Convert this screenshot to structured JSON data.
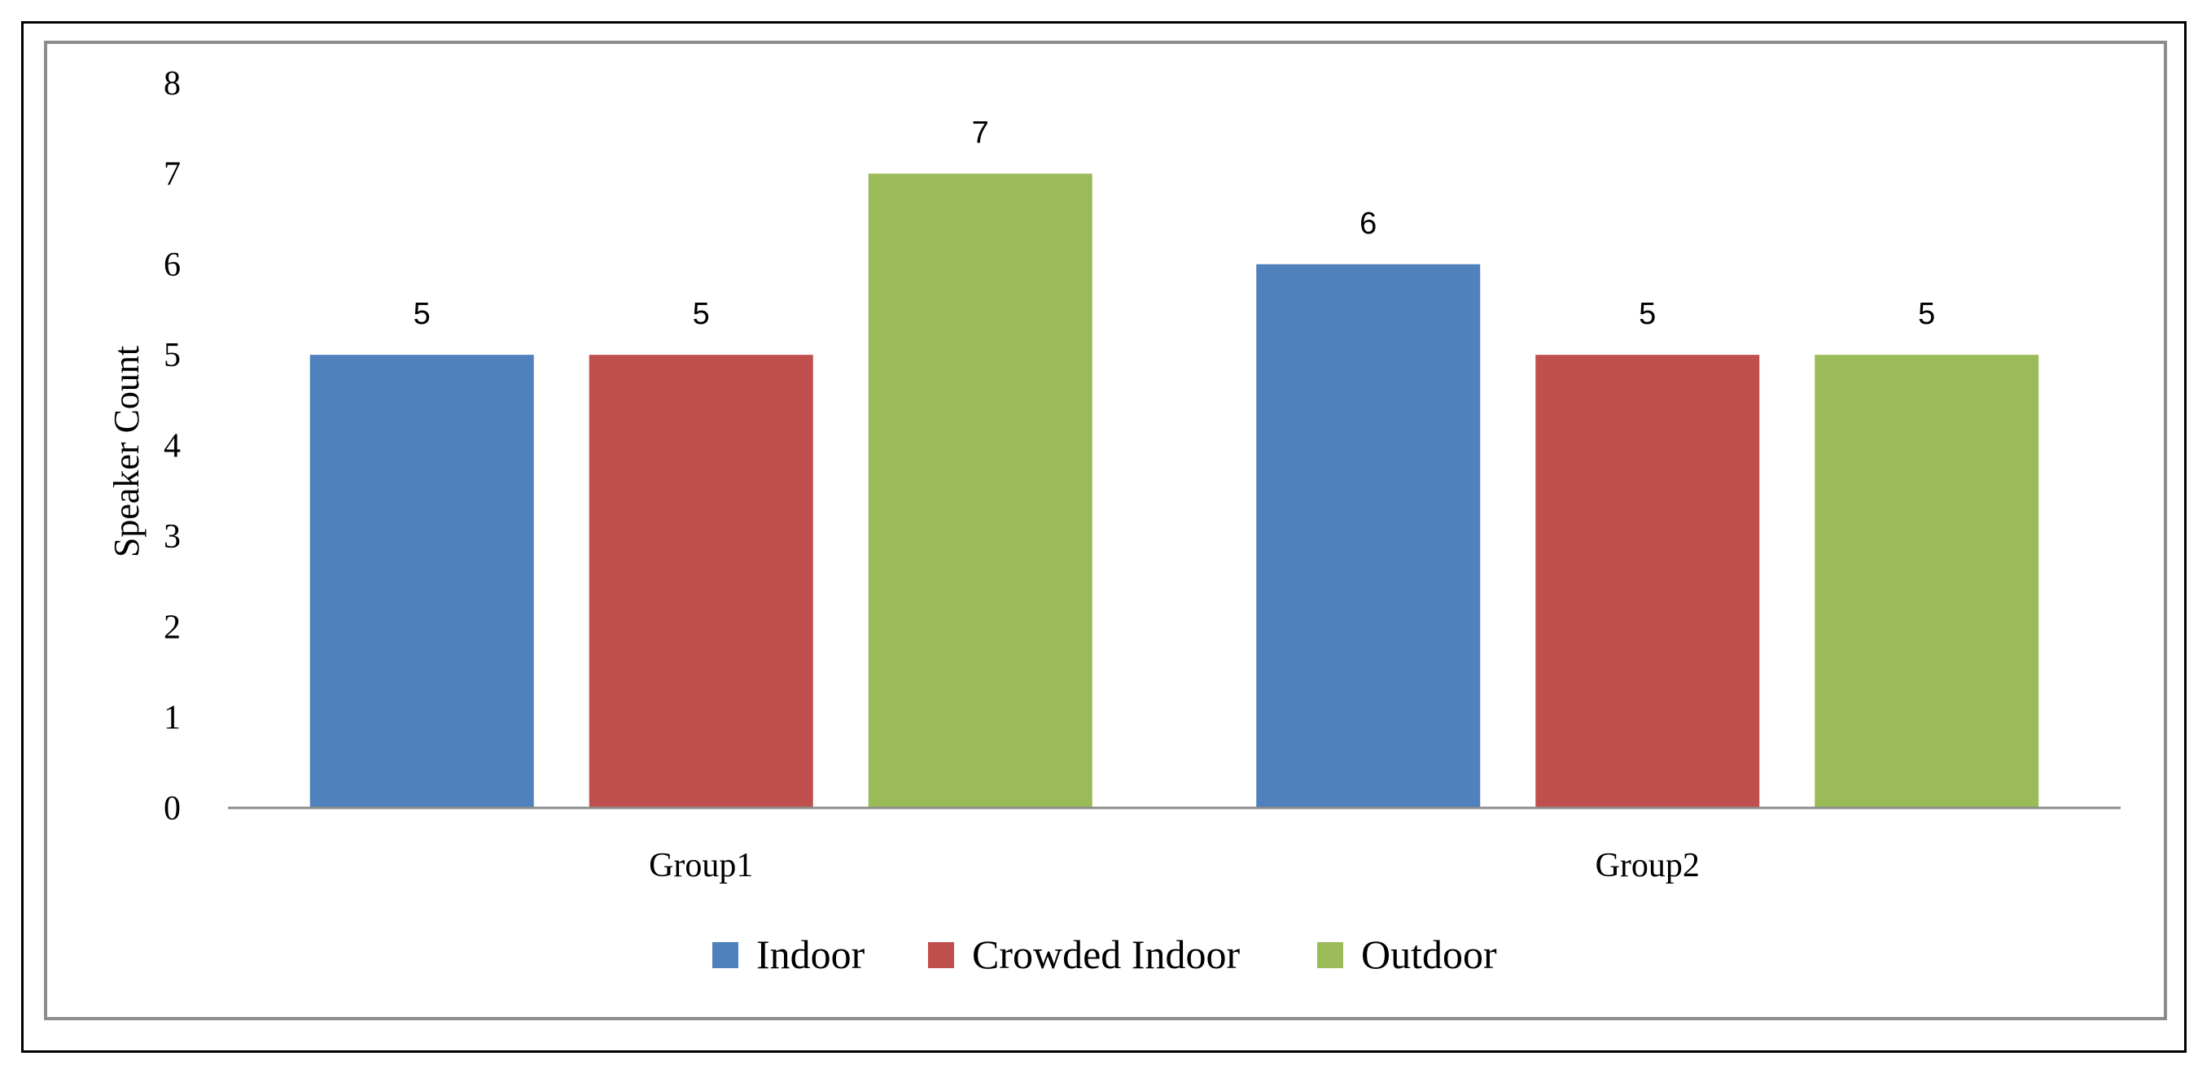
{
  "chart_data": {
    "type": "bar",
    "categories": [
      "Group1",
      "Group2"
    ],
    "series": [
      {
        "name": "Indoor",
        "values": [
          5,
          6
        ],
        "color": "#4F81BD"
      },
      {
        "name": "Crowded Indoor",
        "values": [
          5,
          5
        ],
        "color": "#C0504D"
      },
      {
        "name": "Outdoor",
        "values": [
          7,
          5
        ],
        "color": "#9BBB59"
      }
    ],
    "ylabel": "Speaker Count",
    "xlabel": "",
    "ylim": [
      0,
      8
    ],
    "yticks": [
      "0",
      "1",
      "2",
      "3",
      "4",
      "5",
      "6",
      "7",
      "8"
    ],
    "data_labels": true,
    "grid": false,
    "legend_position": "bottom"
  }
}
